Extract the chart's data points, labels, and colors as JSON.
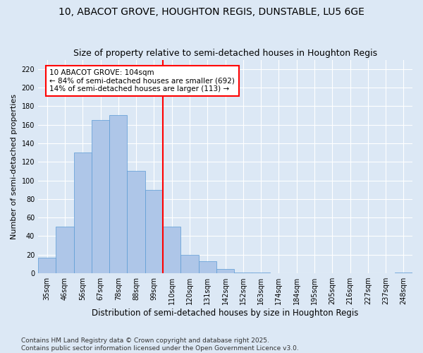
{
  "title1": "10, ABACOT GROVE, HOUGHTON REGIS, DUNSTABLE, LU5 6GE",
  "title2": "Size of property relative to semi-detached houses in Houghton Regis",
  "xlabel": "Distribution of semi-detached houses by size in Houghton Regis",
  "ylabel": "Number of semi-detached properties",
  "bins": [
    "35sqm",
    "46sqm",
    "56sqm",
    "67sqm",
    "78sqm",
    "88sqm",
    "99sqm",
    "110sqm",
    "120sqm",
    "131sqm",
    "142sqm",
    "152sqm",
    "163sqm",
    "174sqm",
    "184sqm",
    "195sqm",
    "205sqm",
    "216sqm",
    "227sqm",
    "237sqm",
    "248sqm"
  ],
  "values": [
    17,
    50,
    130,
    165,
    170,
    110,
    90,
    50,
    20,
    13,
    5,
    1,
    1,
    0,
    0,
    0,
    0,
    0,
    0,
    0,
    1
  ],
  "bar_color": "#aec6e8",
  "bar_edge_color": "#5b9bd5",
  "vline_x": 6.5,
  "vline_color": "red",
  "annotation_text": "10 ABACOT GROVE: 104sqm\n← 84% of semi-detached houses are smaller (692)\n14% of semi-detached houses are larger (113) →",
  "annotation_box_color": "red",
  "footer": "Contains HM Land Registry data © Crown copyright and database right 2025.\nContains public sector information licensed under the Open Government Licence v3.0.",
  "ylim": [
    0,
    230
  ],
  "yticks": [
    0,
    20,
    40,
    60,
    80,
    100,
    120,
    140,
    160,
    180,
    200,
    220
  ],
  "bg_color": "#dce8f5",
  "plot_bg_color": "#dce8f5",
  "grid_color": "#ffffff",
  "title_fontsize": 10,
  "subtitle_fontsize": 9,
  "tick_fontsize": 7,
  "ylabel_fontsize": 8,
  "xlabel_fontsize": 8.5,
  "footer_fontsize": 6.5,
  "annot_fontsize": 7.5
}
